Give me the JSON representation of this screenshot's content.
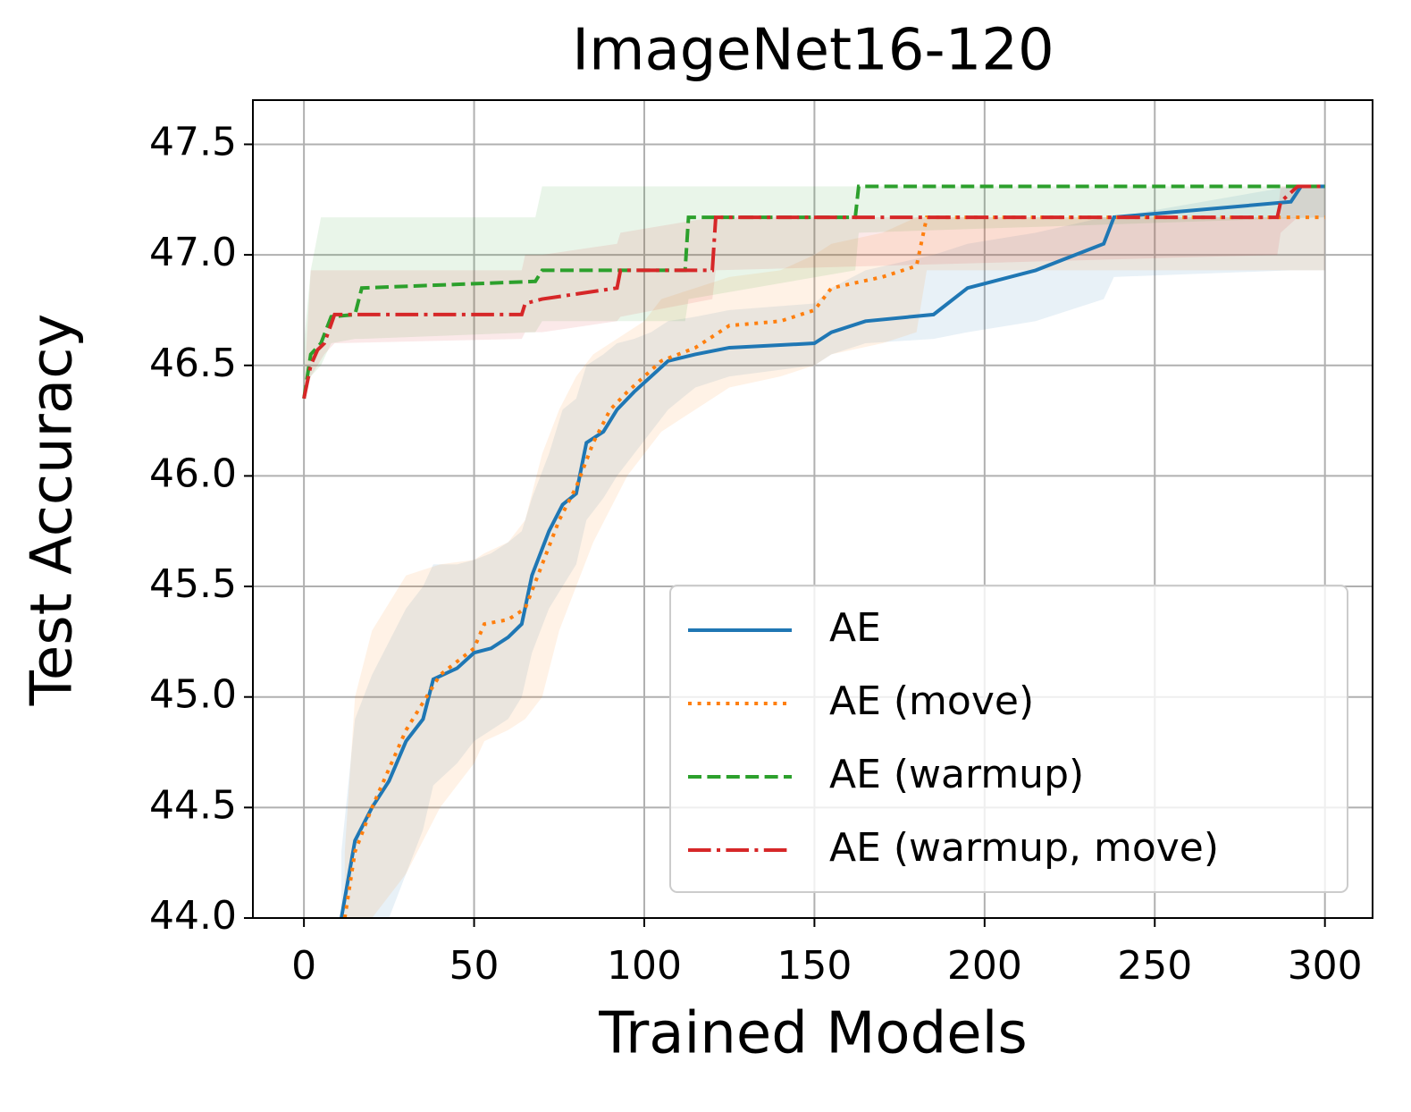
{
  "chart_data": {
    "type": "line",
    "title": "ImageNet16-120",
    "x_label": "Trained Models",
    "y_label": "Test Accuracy",
    "xlim": [
      -15,
      314
    ],
    "ylim": [
      44.0,
      47.7
    ],
    "xticks": [
      0,
      50,
      100,
      150,
      200,
      250,
      300
    ],
    "yticks": [
      {
        "value": 44.0,
        "label": "44.0"
      },
      {
        "value": 44.5,
        "label": "44.5"
      },
      {
        "value": 45.0,
        "label": "45.0"
      },
      {
        "value": 45.5,
        "label": "45.5"
      },
      {
        "value": 46.0,
        "label": "46.0"
      },
      {
        "value": 46.5,
        "label": "46.5"
      },
      {
        "value": 47.0,
        "label": "47.0"
      },
      {
        "value": 47.5,
        "label": "47.5"
      }
    ],
    "grid": true,
    "legend": "lower right",
    "series": [
      {
        "name": "AE",
        "color": "#1f77b4",
        "linestyle": "solid",
        "x": [
          11,
          15,
          20,
          25,
          30,
          35,
          38,
          45,
          50,
          55,
          60,
          64,
          67,
          72,
          76,
          80,
          83,
          88,
          92,
          97,
          102,
          107,
          115,
          125,
          150,
          155,
          165,
          185,
          195,
          215,
          235,
          238,
          290,
          293,
          300
        ],
        "values": [
          44.0,
          44.35,
          44.5,
          44.62,
          44.8,
          44.9,
          45.08,
          45.13,
          45.2,
          45.22,
          45.27,
          45.33,
          45.55,
          45.75,
          45.87,
          45.92,
          46.15,
          46.2,
          46.3,
          46.38,
          46.45,
          46.52,
          46.55,
          46.58,
          46.6,
          46.65,
          46.7,
          46.73,
          46.85,
          46.93,
          47.05,
          47.17,
          47.24,
          47.31,
          47.31
        ],
        "lower": [
          44.0,
          44.0,
          44.0,
          44.0,
          44.2,
          44.4,
          44.6,
          44.7,
          44.8,
          44.85,
          44.9,
          45.0,
          45.2,
          45.4,
          45.5,
          45.6,
          45.8,
          45.9,
          46.0,
          46.1,
          46.2,
          46.3,
          46.4,
          46.45,
          46.5,
          46.55,
          46.6,
          46.62,
          46.65,
          46.7,
          46.8,
          46.9,
          46.93,
          46.93,
          46.93
        ],
        "upper": [
          44.3,
          44.9,
          45.1,
          45.25,
          45.4,
          45.5,
          45.6,
          45.6,
          45.62,
          45.65,
          45.7,
          45.75,
          45.9,
          46.1,
          46.3,
          46.35,
          46.5,
          46.55,
          46.6,
          46.62,
          46.65,
          46.7,
          46.72,
          46.75,
          46.78,
          46.85,
          46.93,
          47.0,
          47.05,
          47.1,
          47.17,
          47.17,
          47.31,
          47.31,
          47.31
        ]
      },
      {
        "name": "AE (move)",
        "color": "#ff7f0e",
        "linestyle": "dotted",
        "x": [
          12,
          15,
          20,
          30,
          40,
          50,
          53,
          60,
          65,
          70,
          75,
          80,
          85,
          90,
          95,
          100,
          105,
          115,
          125,
          140,
          150,
          155,
          170,
          180,
          183,
          300
        ],
        "values": [
          44.0,
          44.3,
          44.5,
          44.85,
          45.1,
          45.22,
          45.33,
          45.35,
          45.4,
          45.6,
          45.8,
          45.95,
          46.15,
          46.3,
          46.38,
          46.45,
          46.52,
          46.58,
          46.68,
          46.7,
          46.75,
          46.85,
          46.9,
          46.95,
          47.17,
          47.17
        ],
        "lower": [
          44.0,
          44.0,
          44.0,
          44.2,
          44.5,
          44.7,
          44.8,
          44.85,
          44.9,
          45.0,
          45.3,
          45.5,
          45.7,
          45.85,
          46.0,
          46.1,
          46.2,
          46.3,
          46.4,
          46.45,
          46.5,
          46.55,
          46.6,
          46.65,
          46.93,
          46.93
        ],
        "upper": [
          44.3,
          45.0,
          45.3,
          45.55,
          45.6,
          45.62,
          45.65,
          45.7,
          45.8,
          46.1,
          46.3,
          46.45,
          46.55,
          46.6,
          46.65,
          46.7,
          46.8,
          46.85,
          46.9,
          46.93,
          47.0,
          47.05,
          47.1,
          47.17,
          47.17,
          47.17
        ]
      },
      {
        "name": "AE (warmup)",
        "color": "#2ca02c",
        "linestyle": "dashed",
        "x": [
          0,
          2,
          5,
          8,
          15,
          17,
          68,
          70,
          112,
          113,
          162,
          163,
          300
        ],
        "values": [
          46.35,
          46.55,
          46.6,
          46.72,
          46.73,
          46.85,
          46.88,
          46.93,
          46.93,
          47.17,
          47.17,
          47.31,
          47.31
        ],
        "lower": [
          46.35,
          46.45,
          46.5,
          46.6,
          46.62,
          46.62,
          46.65,
          46.7,
          46.7,
          46.8,
          46.93,
          47.1,
          47.17
        ],
        "upper": [
          46.6,
          46.93,
          47.17,
          47.17,
          47.17,
          47.17,
          47.17,
          47.31,
          47.31,
          47.31,
          47.31,
          47.31,
          47.31
        ]
      },
      {
        "name": "AE (warmup, move)",
        "color": "#d62728",
        "linestyle": "dashdot",
        "x": [
          0,
          2,
          4,
          6,
          9,
          64,
          65,
          70,
          92,
          93,
          120,
          121,
          286,
          287,
          292,
          300
        ],
        "values": [
          46.35,
          46.5,
          46.57,
          46.6,
          46.73,
          46.73,
          46.78,
          46.8,
          46.85,
          46.93,
          46.93,
          47.17,
          47.17,
          47.24,
          47.31,
          47.31
        ],
        "lower": [
          46.35,
          46.45,
          46.5,
          46.55,
          46.6,
          46.62,
          46.65,
          46.65,
          46.7,
          46.72,
          46.8,
          46.93,
          47.0,
          47.1,
          47.17,
          47.17
        ],
        "upper": [
          46.4,
          46.93,
          46.93,
          46.93,
          46.93,
          46.93,
          47.0,
          47.0,
          47.05,
          47.1,
          47.17,
          47.17,
          47.17,
          47.31,
          47.31,
          47.31
        ]
      }
    ]
  }
}
